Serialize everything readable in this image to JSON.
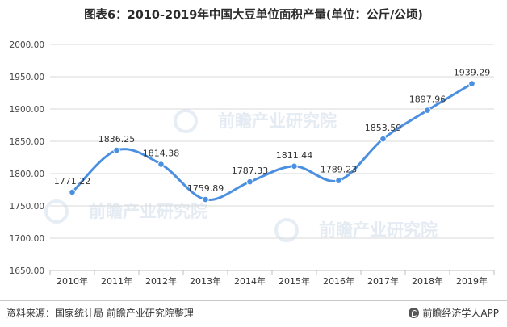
{
  "title": "图表6：2010-2019年中国大豆单位面积产量(单位：公斤/公顷)",
  "source": "资料来源：国家统计局 前瞻产业研究院整理",
  "brand": "前瞻经济学人APP",
  "watermark": "前瞻产业研究院",
  "colors": {
    "line": "#4a8fe0",
    "marker": "#4a8fe0",
    "grid": "#d9d9d9",
    "axis": "#bfbfbf"
  },
  "chart_data": {
    "type": "line",
    "categories": [
      "2010年",
      "2011年",
      "2012年",
      "2013年",
      "2014年",
      "2015年",
      "2016年",
      "2017年",
      "2018年",
      "2019年"
    ],
    "series": [
      {
        "values": [
          1771.22,
          1836.25,
          1814.38,
          1759.89,
          1787.33,
          1811.44,
          1789.23,
          1853.59,
          1897.96,
          1939.29
        ]
      }
    ],
    "data_labels": [
      "1771.22",
      "1836.25",
      "1814.38",
      "1759.89",
      "1787.33",
      "1811.44",
      "1789.23",
      "1853.59",
      "1897.96",
      "1939.29"
    ],
    "y_ticks": [
      "1650.00",
      "1700.00",
      "1750.00",
      "1800.00",
      "1850.00",
      "1900.00",
      "1950.00",
      "2000.00"
    ],
    "ylim": [
      1650,
      2000
    ],
    "grid": true,
    "smooth": true,
    "legend": false
  }
}
